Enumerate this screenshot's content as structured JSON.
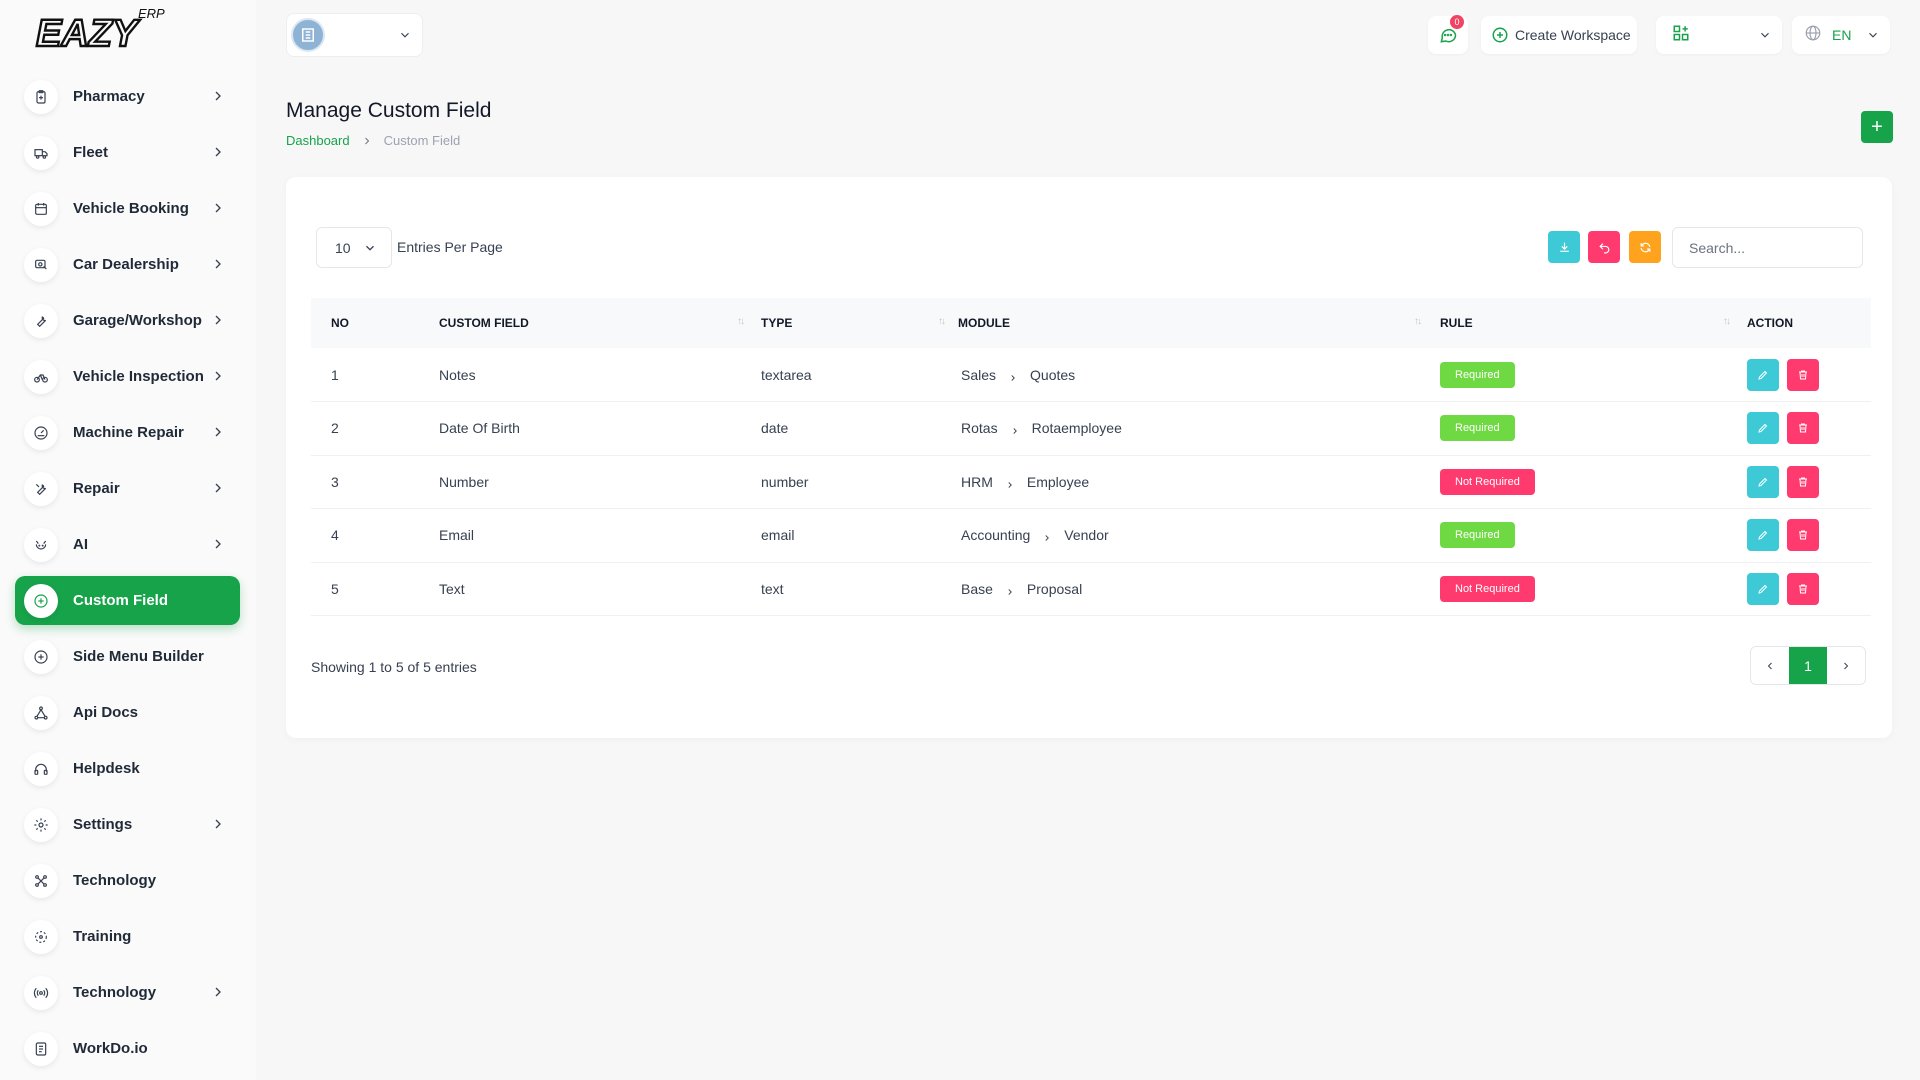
{
  "brand": {
    "logo_text": "EAZY",
    "logo_sup": "ERP"
  },
  "sidebar": {
    "items": [
      {
        "label": "Pharmacy",
        "icon": "clipboard-icon",
        "chevron": true,
        "active": false
      },
      {
        "label": "Fleet",
        "icon": "truck-icon",
        "chevron": true,
        "active": false
      },
      {
        "label": "Vehicle Booking",
        "icon": "calendar-icon",
        "chevron": true,
        "active": false
      },
      {
        "label": "Car Dealership",
        "icon": "car-icon",
        "chevron": true,
        "active": false
      },
      {
        "label": "Garage/Workshop",
        "icon": "wrench-icon",
        "chevron": true,
        "active": false
      },
      {
        "label": "Vehicle Inspection",
        "icon": "bike-icon",
        "chevron": true,
        "active": false
      },
      {
        "label": "Machine Repair",
        "icon": "gauge-icon",
        "chevron": true,
        "active": false
      },
      {
        "label": "Repair",
        "icon": "tool-icon",
        "chevron": true,
        "active": false
      },
      {
        "label": "AI",
        "icon": "robot-icon",
        "chevron": true,
        "active": false
      },
      {
        "label": "Custom Field",
        "icon": "plus-circle-icon",
        "chevron": false,
        "active": true
      },
      {
        "label": "Side Menu Builder",
        "icon": "plus-circle-icon",
        "chevron": false,
        "active": false
      },
      {
        "label": "Api Docs",
        "icon": "network-icon",
        "chevron": false,
        "active": false
      },
      {
        "label": "Helpdesk",
        "icon": "headphones-icon",
        "chevron": false,
        "active": false
      },
      {
        "label": "Settings",
        "icon": "gear-icon",
        "chevron": true,
        "active": false
      },
      {
        "label": "Technology",
        "icon": "nodes-icon",
        "chevron": false,
        "active": false
      },
      {
        "label": "Training",
        "icon": "target-icon",
        "chevron": false,
        "active": false
      },
      {
        "label": "Technology",
        "icon": "broadcast-icon",
        "chevron": true,
        "active": false
      },
      {
        "label": "WorkDo.io",
        "icon": "document-icon",
        "chevron": false,
        "active": false
      }
    ]
  },
  "header": {
    "workspace_name": "",
    "notification_count": "0",
    "create_workspace_label": "Create Workspace",
    "language": "EN"
  },
  "page": {
    "title": "Manage Custom Field",
    "breadcrumb": {
      "home": "Dashboard",
      "current": "Custom Field"
    },
    "add_label": "+"
  },
  "table_controls": {
    "per_page_value": "10",
    "per_page_label": "Entries Per Page",
    "search_placeholder": "Search..."
  },
  "table": {
    "columns": [
      "NO",
      "CUSTOM FIELD",
      "TYPE",
      "MODULE",
      "RULE",
      "ACTION"
    ],
    "rows": [
      {
        "no": "1",
        "field": "Notes",
        "type": "textarea",
        "module": "Sales",
        "submodule": "Quotes",
        "rule": "Required",
        "required": true
      },
      {
        "no": "2",
        "field": "Date Of Birth",
        "type": "date",
        "module": "Rotas",
        "submodule": "Rotaemployee",
        "rule": "Required",
        "required": true
      },
      {
        "no": "3",
        "field": "Number",
        "type": "number",
        "module": "HRM",
        "submodule": "Employee",
        "rule": "Not Required",
        "required": false
      },
      {
        "no": "4",
        "field": "Email",
        "type": "email",
        "module": "Accounting",
        "submodule": "Vendor",
        "rule": "Required",
        "required": true
      },
      {
        "no": "5",
        "field": "Text",
        "type": "text",
        "module": "Base",
        "submodule": "Proposal",
        "rule": "Not Required",
        "required": false
      }
    ]
  },
  "footer": {
    "showing_text": "Showing 1 to 5 of 5 entries",
    "current_page": "1"
  },
  "colors": {
    "primary": "#16a34a",
    "required": "#6fd943",
    "danger": "#ff3a6e",
    "info": "#3ec9d6",
    "warning": "#ffa21d"
  }
}
